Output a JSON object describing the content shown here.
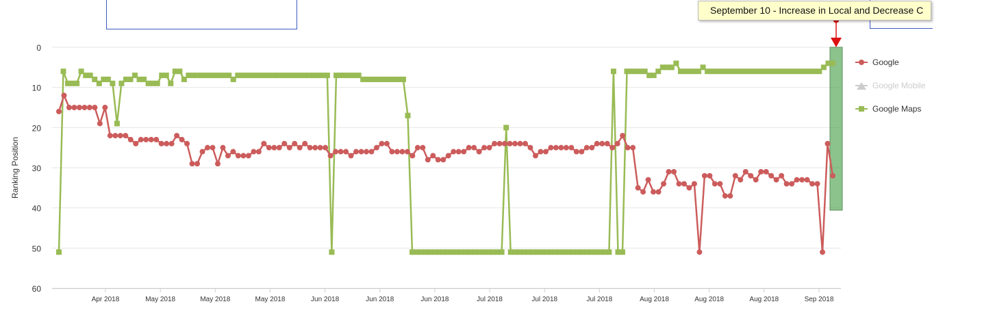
{
  "chart_data": {
    "type": "line",
    "title": "",
    "xlabel": "",
    "ylabel": "Ranking Position",
    "ylim": [
      60,
      0
    ],
    "y_ticks": [
      "0",
      "10",
      "20",
      "30",
      "40",
      "50",
      "60"
    ],
    "x_tick_labels": [
      "Apr 2018",
      "May 2018",
      "May 2018",
      "May 2018",
      "Jun 2018",
      "Jun 2018",
      "Jun 2018",
      "Jul 2018",
      "Jul 2018",
      "Jul 2018",
      "Aug 2018",
      "Aug 2018",
      "Aug 2018",
      "Sep 2018"
    ],
    "grid": true,
    "legend_position": "right",
    "series": [
      {
        "name": "Google",
        "color": "#cc5c5c",
        "marker": "circle",
        "values": [
          16,
          12,
          15,
          15,
          15,
          15,
          15,
          15,
          19,
          15,
          22,
          22,
          22,
          22,
          23,
          24,
          23,
          23,
          23,
          23,
          24,
          24,
          24,
          22,
          23,
          24,
          29,
          29,
          26,
          25,
          25,
          29,
          25,
          27,
          26,
          27,
          27,
          27,
          26,
          26,
          24,
          25,
          25,
          25,
          24,
          25,
          24,
          25,
          24,
          25,
          25,
          25,
          25,
          27,
          26,
          26,
          26,
          27,
          26,
          26,
          26,
          26,
          25,
          24,
          24,
          26,
          26,
          26,
          26,
          27,
          25,
          25,
          28,
          27,
          28,
          28,
          27,
          26,
          26,
          26,
          25,
          25,
          26,
          25,
          25,
          24,
          24,
          24,
          24,
          24,
          24,
          24,
          25,
          27,
          26,
          26,
          25,
          25,
          25,
          25,
          25,
          26,
          26,
          25,
          25,
          24,
          24,
          24,
          25,
          24,
          22,
          25,
          25,
          35,
          36,
          33,
          36,
          36,
          34,
          31,
          31,
          34,
          34,
          35,
          34,
          51,
          32,
          32,
          34,
          34,
          37,
          37,
          32,
          33,
          31,
          32,
          33,
          31,
          31,
          32,
          33,
          32,
          34,
          34,
          33,
          33,
          33,
          34,
          34,
          51,
          24,
          32
        ]
      },
      {
        "name": "Google Mobile",
        "color": "#cccccc",
        "marker": "triangle",
        "values": []
      },
      {
        "name": "Google Maps",
        "color": "#99bb55",
        "marker": "square",
        "values": [
          51,
          6,
          9,
          9,
          9,
          6,
          7,
          7,
          8,
          9,
          8,
          8,
          9,
          19,
          9,
          8,
          8,
          7,
          8,
          8,
          9,
          9,
          9,
          7,
          7,
          9,
          6,
          6,
          8,
          7,
          7,
          7,
          7,
          7,
          7,
          7,
          7,
          7,
          7,
          8,
          7,
          7,
          7,
          7,
          7,
          7,
          7,
          7,
          7,
          7,
          7,
          7,
          7,
          7,
          7,
          7,
          7,
          7,
          7,
          7,
          7,
          51,
          7,
          7,
          7,
          7,
          7,
          7,
          8,
          8,
          8,
          8,
          8,
          8,
          8,
          8,
          8,
          8,
          17,
          51,
          51,
          51,
          51,
          51,
          51,
          51,
          51,
          51,
          51,
          51,
          51,
          51,
          51,
          51,
          51,
          51,
          51,
          51,
          51,
          51,
          20,
          51,
          51,
          51,
          51,
          51,
          51,
          51,
          51,
          51,
          51,
          51,
          51,
          51,
          51,
          51,
          51,
          51,
          51,
          51,
          51,
          51,
          51,
          51,
          6,
          51,
          51,
          6,
          6,
          6,
          6,
          6,
          7,
          7,
          6,
          5,
          5,
          5,
          4,
          6,
          6,
          6,
          6,
          6,
          5,
          6,
          6,
          6,
          6,
          6,
          6,
          6,
          6,
          6,
          6,
          6,
          6,
          6,
          6,
          6,
          6,
          6,
          6,
          6,
          6,
          6,
          6,
          6,
          6,
          6,
          6,
          5,
          4,
          4
        ]
      }
    ],
    "annotation": {
      "label": "September 10 - Increase in Local and Decrease C",
      "band_color": "#3f9a3f",
      "marker_color": "#dd1111"
    }
  }
}
